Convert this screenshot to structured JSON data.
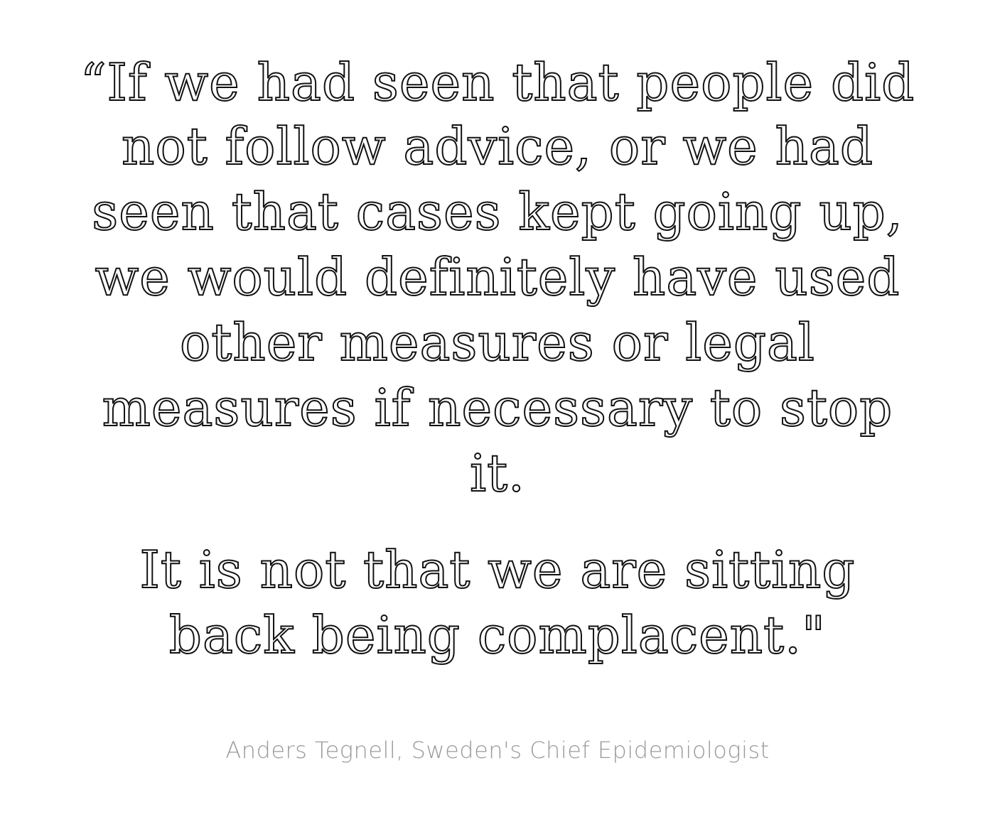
{
  "quote": {
    "paragraph1": [
      "“If we had seen that people did",
      "not follow advice, or we had",
      "seen that cases kept going up,",
      "we would definitely have used",
      "other measures or legal",
      "measures if necessary to stop",
      "it."
    ],
    "paragraph2": [
      "It is not that we are sitting",
      "back being complacent.\""
    ]
  },
  "attribution": "Anders Tegnell, Sweden's Chief Epidemiologist",
  "colors": {
    "background": "#ffffff",
    "quote_outline": "#111111",
    "attribution": "#9a9a9a"
  }
}
